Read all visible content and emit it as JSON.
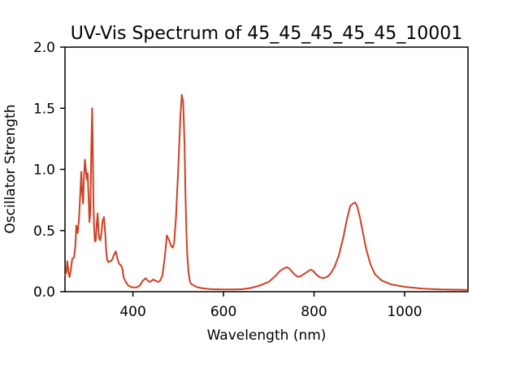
{
  "chart_data": {
    "type": "line",
    "title": "UV-Vis Spectrum of 45_45_45_45_45_10001",
    "xlabel": "Wavelength (nm)",
    "ylabel": "Oscillator Strength",
    "xlim": [
      250,
      1140
    ],
    "ylim": [
      0,
      2.0
    ],
    "xticks": [
      400,
      600,
      800,
      1000
    ],
    "yticks": [
      0.0,
      0.5,
      1.0,
      1.5,
      2.0
    ],
    "xtick_labels": [
      "400",
      "600",
      "800",
      "1000"
    ],
    "ytick_labels": [
      "0.0",
      "0.5",
      "1.0",
      "1.5",
      "2.0"
    ],
    "grid": false,
    "series": [
      {
        "color": "#cc4125",
        "x": [
          250,
          253,
          255,
          258,
          260,
          263,
          266,
          270,
          273,
          275,
          278,
          281,
          284,
          286,
          288,
          290,
          292,
          294,
          296,
          298,
          300,
          302,
          304,
          306,
          308,
          310,
          312,
          313,
          314,
          316,
          318,
          320,
          322,
          325,
          328,
          331,
          333,
          336,
          339,
          341,
          343,
          346,
          349,
          352,
          355,
          358,
          362,
          366,
          369,
          372,
          376,
          380,
          383,
          386,
          390,
          395,
          400,
          408,
          415,
          422,
          428,
          433,
          437,
          440,
          445,
          450,
          455,
          460,
          465,
          470,
          475,
          480,
          485,
          488,
          491,
          495,
          500,
          505,
          508,
          511,
          514,
          516,
          518,
          520,
          523,
          526,
          530,
          535,
          540,
          550,
          560,
          575,
          600,
          620,
          640,
          660,
          680,
          700,
          715,
          725,
          733,
          740,
          745,
          750,
          757,
          765,
          772,
          780,
          788,
          793,
          798,
          805,
          812,
          820,
          828,
          835,
          845,
          855,
          865,
          873,
          880,
          886,
          891,
          895,
          900,
          907,
          915,
          925,
          935,
          950,
          970,
          1000,
          1040,
          1080,
          1140
        ],
        "y": [
          0.13,
          0.16,
          0.25,
          0.15,
          0.12,
          0.18,
          0.27,
          0.28,
          0.38,
          0.54,
          0.48,
          0.6,
          0.82,
          0.98,
          0.8,
          0.72,
          0.95,
          1.08,
          1.0,
          0.92,
          0.97,
          0.78,
          0.57,
          0.65,
          1.15,
          1.5,
          1.0,
          0.7,
          0.55,
          0.41,
          0.42,
          0.55,
          0.64,
          0.44,
          0.42,
          0.5,
          0.58,
          0.61,
          0.47,
          0.33,
          0.26,
          0.24,
          0.25,
          0.25,
          0.27,
          0.3,
          0.33,
          0.27,
          0.23,
          0.22,
          0.2,
          0.11,
          0.09,
          0.07,
          0.05,
          0.04,
          0.035,
          0.035,
          0.05,
          0.09,
          0.11,
          0.09,
          0.08,
          0.085,
          0.1,
          0.09,
          0.08,
          0.09,
          0.13,
          0.27,
          0.46,
          0.42,
          0.37,
          0.36,
          0.4,
          0.6,
          1.0,
          1.45,
          1.61,
          1.55,
          1.2,
          0.8,
          0.5,
          0.3,
          0.15,
          0.08,
          0.06,
          0.05,
          0.04,
          0.03,
          0.025,
          0.02,
          0.018,
          0.018,
          0.02,
          0.03,
          0.05,
          0.08,
          0.13,
          0.17,
          0.19,
          0.2,
          0.19,
          0.17,
          0.14,
          0.12,
          0.13,
          0.15,
          0.17,
          0.18,
          0.17,
          0.14,
          0.12,
          0.11,
          0.12,
          0.14,
          0.2,
          0.3,
          0.45,
          0.6,
          0.7,
          0.72,
          0.73,
          0.7,
          0.63,
          0.5,
          0.35,
          0.22,
          0.14,
          0.09,
          0.06,
          0.04,
          0.025,
          0.018,
          0.015
        ]
      }
    ]
  }
}
